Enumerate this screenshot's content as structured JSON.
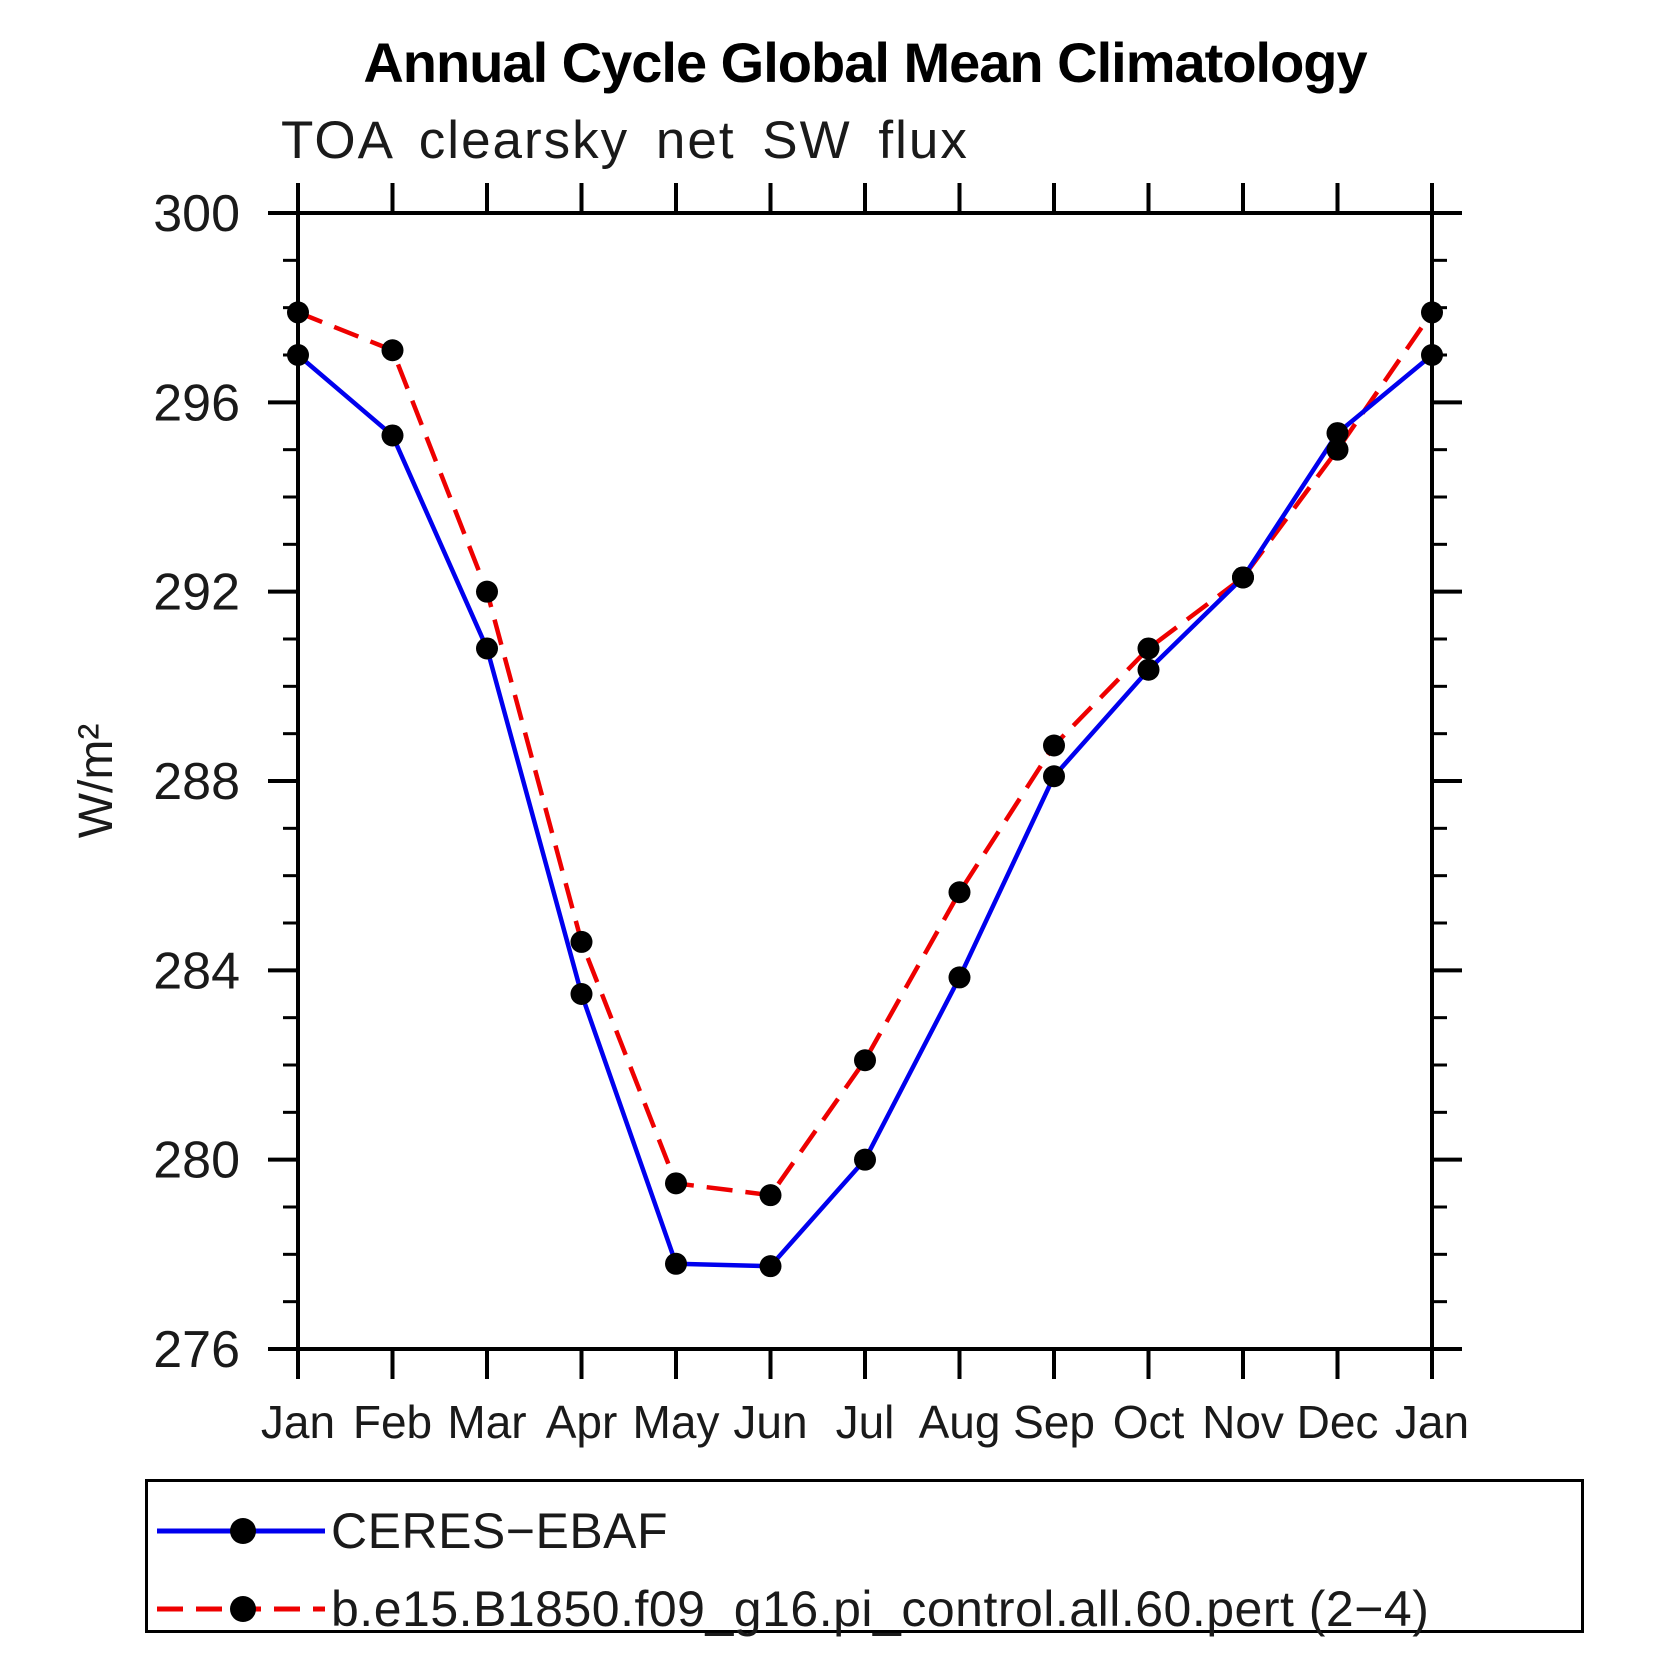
{
  "title": "Annual Cycle Global Mean Climatology",
  "subtitle": "TOA clearsky net SW flux",
  "y_axis_label": "W/m²",
  "legend": {
    "items": [
      {
        "label": "CERES−EBAF",
        "color": "#0000ee",
        "line_style": "solid"
      },
      {
        "label": "b.e15.B1850.f09_g16.pi_control.all.60.pert (2−4)",
        "color": "#ee0000",
        "line_style": "dashed"
      }
    ]
  },
  "chart_data": {
    "type": "line",
    "title": "Annual Cycle Global Mean Climatology",
    "subtitle": "TOA clearsky net SW flux",
    "xlabel": "",
    "ylabel": "W/m²",
    "ylim": [
      276,
      300
    ],
    "y_major_ticks": [
      276,
      280,
      284,
      288,
      292,
      296,
      300
    ],
    "y_minor_step": 1,
    "grid": false,
    "legend_position": "bottom",
    "marker": "filled-circle",
    "marker_color": "#000000",
    "x_categories": [
      "Jan",
      "Feb",
      "Mar",
      "Apr",
      "May",
      "Jun",
      "Jul",
      "Aug",
      "Sep",
      "Oct",
      "Nov",
      "Dec",
      "Jan"
    ],
    "series": [
      {
        "name": "CERES−EBAF",
        "color": "#0000ee",
        "line_style": "solid",
        "values": [
          297.0,
          295.3,
          290.8,
          283.5,
          277.8,
          277.75,
          280.0,
          283.85,
          288.1,
          290.35,
          292.3,
          295.35,
          297.0
        ]
      },
      {
        "name": "b.e15.B1850.f09_g16.pi_control.all.60.pert (2−4)",
        "color": "#ee0000",
        "line_style": "dashed",
        "values": [
          297.9,
          297.1,
          292.0,
          284.6,
          279.5,
          279.25,
          282.1,
          285.65,
          288.75,
          290.8,
          292.3,
          295.0,
          297.9
        ]
      }
    ]
  }
}
